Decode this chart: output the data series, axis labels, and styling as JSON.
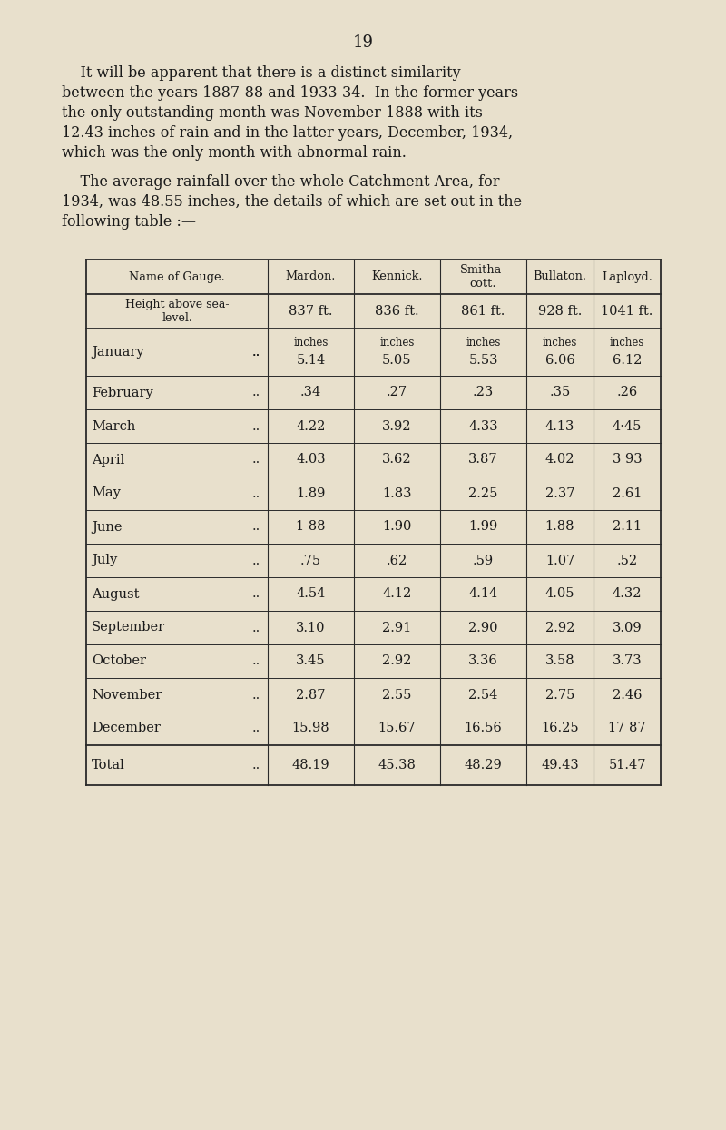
{
  "page_number": "19",
  "bg_color": "#e8e0cc",
  "text_color": "#1a1a1a",
  "col_headers": [
    "Name of Gauge.",
    "Mardon.",
    "Kennick.",
    "Smitha-\ncott.",
    "Bullaton.",
    "Laployd."
  ],
  "row2_col0": "Height above sea-\nlevel.",
  "row2_vals": [
    "837 ft.",
    "836 ft.",
    "861 ft.",
    "928 ft.",
    "1041 ft."
  ],
  "months": [
    "January",
    "February",
    "March",
    "April",
    "May",
    "June",
    "July",
    "August",
    "September",
    "October",
    "November",
    "December"
  ],
  "data": [
    [
      "5.14",
      "5.05",
      "5.53",
      "6.06",
      "6.12"
    ],
    [
      ".34",
      ".27",
      ".23",
      ".35",
      ".26"
    ],
    [
      "4.22",
      "3.92",
      "4.33",
      "4.13",
      "4·45"
    ],
    [
      "4.03",
      "3.62",
      "3.87",
      "4.02",
      "3 93"
    ],
    [
      "1.89",
      "1.83",
      "2.25",
      "2.37",
      "2.61"
    ],
    [
      "1 88",
      "1.90",
      "1.99",
      "1.88",
      "2.11"
    ],
    [
      ".75",
      ".62",
      ".59",
      "1.07",
      ".52"
    ],
    [
      "4.54",
      "4.12",
      "4.14",
      "4.05",
      "4.32"
    ],
    [
      "3.10",
      "2.91",
      "2.90",
      "2.92",
      "3.09"
    ],
    [
      "3.45",
      "2.92",
      "3.36",
      "3.58",
      "3.73"
    ],
    [
      "2.87",
      "2.55",
      "2.54",
      "2.75",
      "2.46"
    ],
    [
      "15.98",
      "15.67",
      "16.56",
      "16.25",
      "17 87"
    ]
  ],
  "totals": [
    "48.19",
    "45.38",
    "48.29",
    "49.43",
    "51.47"
  ],
  "p1_lines": [
    "    It will be apparent that there is a distinct similarity",
    "between the years 1887-88 and 1933-34.  In the former years",
    "the only outstanding month was November 1888 with its",
    "12.43 inches of rain and in the latter years, December, 1934,",
    "which was the only month with abnormal rain."
  ],
  "p2_lines": [
    "    The average rainfall over the whole Catchment Area, for",
    "1934, was 48.55 inches, the details of which are set out in the",
    "following table :—"
  ]
}
